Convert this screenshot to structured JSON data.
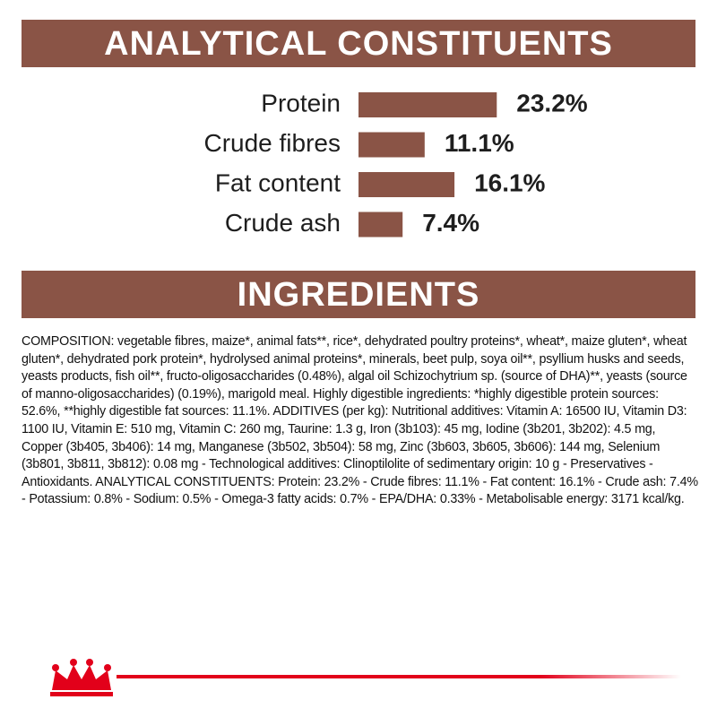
{
  "chart_data": {
    "type": "bar",
    "title": "ANALYTICAL CONSTITUENTS",
    "categories": [
      "Protein",
      "Crude fibres",
      "Fat content",
      "Crude ash"
    ],
    "values": [
      23.2,
      11.1,
      16.1,
      7.4
    ],
    "value_labels": [
      "23.2%",
      "11.1%",
      "16.1%",
      "7.4%"
    ],
    "color": "#8a5446"
  },
  "ingredients": {
    "title": "INGREDIENTS",
    "text": "COMPOSITION: vegetable fibres, maize*, animal fats**, rice*, dehydrated poultry proteins*, wheat*, maize gluten*, wheat gluten*, dehydrated pork protein*, hydrolysed animal proteins*, minerals, beet pulp, soya oil**, psyllium husks and seeds, yeasts products, fish oil**, fructo-oligosaccharides (0.48%), algal oil Schizochytrium sp. (source of DHA)**, yeasts (source of manno-oligosaccharides) (0.19%), marigold meal. Highly digestible ingredients: *highly digestible protein sources: 52.6%, **highly digestible fat sources: 11.1%. ADDITIVES (per kg): Nutritional additives: Vitamin A: 16500 IU, Vitamin D3: 1100 IU, Vitamin E: 510 mg, Vitamin C: 260 mg, Taurine: 1.3 g, Iron (3b103): 45 mg, Iodine (3b201, 3b202): 4.5 mg, Copper (3b405, 3b406): 14 mg, Manganese (3b502, 3b504): 58 mg, Zinc (3b603, 3b605, 3b606): 144 mg, Selenium (3b801, 3b811, 3b812): 0.08 mg - Technological additives: Clinoptilolite of sedimentary origin: 10 g - Preservatives - Antioxidants. ANALYTICAL CONSTITUENTS: Protein: 23.2% - Crude fibres: 11.1% - Fat content: 16.1% - Crude ash: 7.4% - Potassium: 0.8% - Sodium: 0.5% - Omega-3 fatty acids: 0.7% - EPA/DHA: 0.33% - Metabolisable energy: 3171 kcal/kg."
  }
}
